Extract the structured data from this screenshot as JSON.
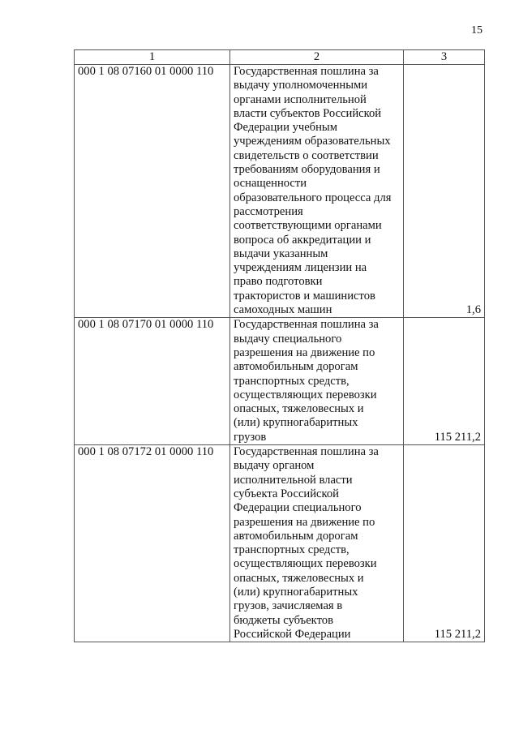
{
  "page_number": "15",
  "table": {
    "headers": [
      "1",
      "2",
      "3"
    ],
    "rows": [
      {
        "code": "000 1 08 07160 01 0000 110",
        "description_lines": [
          "Государственная пошлина за",
          "выдачу уполномоченными",
          "органами исполнительной",
          "власти субъектов Российской",
          "Федерации учебным",
          "учреждениям образовательных",
          "свидетельств о соответствии",
          "требованиям оборудования и",
          "оснащенности",
          "образовательного процесса для",
          "рассмотрения",
          "соответствующими органами",
          "вопроса об аккредитации и",
          "выдачи указанным",
          "учреждениям лицензии на",
          "право подготовки",
          "трактористов и машинистов",
          "самоходных машин"
        ],
        "amount": "1,6"
      },
      {
        "code": "000 1 08 07170 01 0000 110",
        "description_lines": [
          "Государственная пошлина за",
          "выдачу специального",
          "разрешения на движение по",
          "автомобильным дорогам",
          "транспортных средств,",
          "осуществляющих перевозки",
          "опасных, тяжеловесных и",
          "(или) крупногабаритных",
          "грузов"
        ],
        "amount": "115 211,2"
      },
      {
        "code": "000 1 08 07172 01 0000 110",
        "description_lines": [
          "Государственная пошлина за",
          "выдачу органом",
          "исполнительной власти",
          "субъекта Российской",
          "Федерации специального",
          "разрешения на движение по",
          "автомобильным дорогам",
          "транспортных средств,",
          "осуществляющих перевозки",
          "опасных, тяжеловесных и",
          "(или) крупногабаритных",
          "грузов, зачисляемая в",
          "бюджеты субъектов",
          "Российской Федерации"
        ],
        "amount": "115 211,2"
      }
    ]
  }
}
